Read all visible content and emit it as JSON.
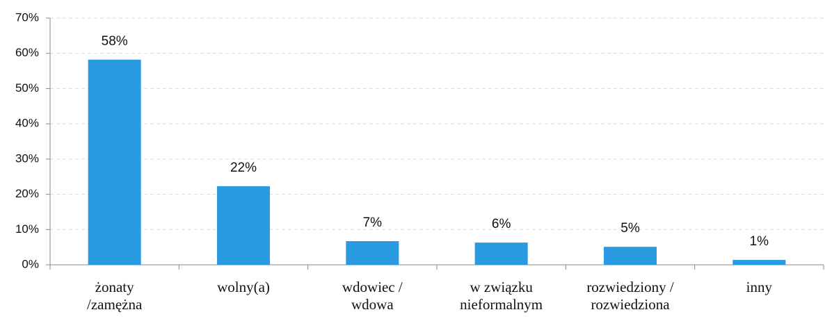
{
  "chart_data": {
    "type": "bar",
    "categories": [
      "żonaty\n/zamężna",
      "wolny(a)",
      "wdowiec /\nwdowa",
      "w związku\nnieformalnym",
      "rozwiedziony /\nrozwiedziona",
      "inny"
    ],
    "values": [
      58.2,
      22.3,
      6.7,
      6.3,
      5.1,
      1.4
    ],
    "value_labels": [
      "58%",
      "22%",
      "7%",
      "6%",
      "5%",
      "1%"
    ],
    "color": "#2a9be0",
    "ylim": [
      0,
      70
    ],
    "yticks": [
      {
        "value": 0,
        "label": "0%"
      },
      {
        "value": 10,
        "label": "10%"
      },
      {
        "value": 20,
        "label": "20%"
      },
      {
        "value": 30,
        "label": "30%"
      },
      {
        "value": 40,
        "label": "40%"
      },
      {
        "value": 50,
        "label": "50%"
      },
      {
        "value": 60,
        "label": "60%"
      },
      {
        "value": 70,
        "label": "70%"
      }
    ],
    "grid": true
  }
}
